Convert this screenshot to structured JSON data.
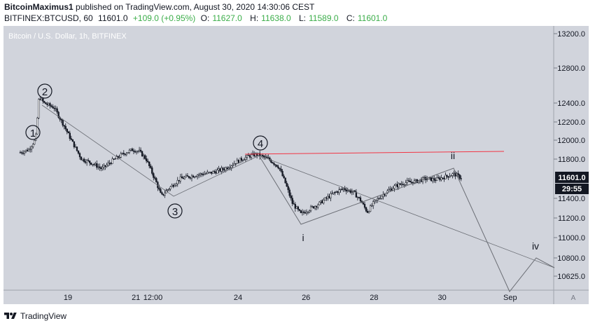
{
  "header": {
    "author": "BitcoinMaximus1",
    "published_text": "published on TradingView.com, August 30, 2020 14:30:06 CEST",
    "symbol": "BITFINEX:BTCUSD, 60",
    "last": "11601.0",
    "change": "+109.0 (+0.95%)",
    "open_label": "O:",
    "open": "11627.0",
    "high_label": "H:",
    "high": "11638.0",
    "low_label": "L:",
    "low": "11589.0",
    "close_label": "C:",
    "close": "11601.0"
  },
  "chart_data": {
    "type": "candlestick",
    "title": "Bitcoin / U.S. Dollar, 1h, BITFINEX",
    "ylim": [
      10500,
      13300
    ],
    "y_ticks": [
      "13200.0",
      "12800.0",
      "12400.0",
      "12200.0",
      "12000.0",
      "11800.0",
      "11400.0",
      "11200.0",
      "11000.0",
      "10800.0",
      "10625.0"
    ],
    "x_ticks": [
      "19",
      "21",
      "12:00",
      "24",
      "26",
      "28",
      "30",
      "Sep"
    ],
    "x_tick_days": [
      19,
      21,
      21.5,
      24,
      26,
      28,
      30,
      32
    ],
    "last_price": "11601.0",
    "countdown": "29:55",
    "approx_path": [
      [
        17.6,
        11870
      ],
      [
        17.85,
        11900
      ],
      [
        18.05,
        12010
      ],
      [
        18.15,
        12470
      ],
      [
        18.3,
        12400
      ],
      [
        18.6,
        12350
      ],
      [
        18.9,
        12150
      ],
      [
        19.1,
        12000
      ],
      [
        19.4,
        11800
      ],
      [
        19.7,
        11760
      ],
      [
        20.0,
        11700
      ],
      [
        20.3,
        11780
      ],
      [
        20.6,
        11850
      ],
      [
        20.9,
        11900
      ],
      [
        21.1,
        11880
      ],
      [
        21.3,
        11800
      ],
      [
        21.6,
        11560
      ],
      [
        21.75,
        11420
      ],
      [
        21.9,
        11480
      ],
      [
        22.3,
        11600
      ],
      [
        22.8,
        11640
      ],
      [
        23.2,
        11660
      ],
      [
        23.6,
        11700
      ],
      [
        24.0,
        11780
      ],
      [
        24.3,
        11830
      ],
      [
        24.55,
        11850
      ],
      [
        24.9,
        11800
      ],
      [
        25.2,
        11720
      ],
      [
        25.4,
        11550
      ],
      [
        25.6,
        11350
      ],
      [
        25.85,
        11240
      ],
      [
        26.1,
        11290
      ],
      [
        26.4,
        11350
      ],
      [
        26.8,
        11450
      ],
      [
        27.1,
        11500
      ],
      [
        27.4,
        11460
      ],
      [
        27.6,
        11380
      ],
      [
        27.8,
        11260
      ],
      [
        28.0,
        11360
      ],
      [
        28.3,
        11450
      ],
      [
        28.6,
        11520
      ],
      [
        28.9,
        11560
      ],
      [
        29.2,
        11570
      ],
      [
        29.5,
        11600
      ],
      [
        29.8,
        11590
      ],
      [
        30.1,
        11620
      ],
      [
        30.35,
        11650
      ],
      [
        30.6,
        11601
      ]
    ],
    "wave_labels": [
      "1",
      "2",
      "3",
      "4",
      "i",
      "ii",
      "iv"
    ],
    "colors": {
      "background": "#d1d4dc",
      "candles": "#131722",
      "resistance": "#f23645",
      "wave_lines": "#555555",
      "price_tag": "#131722"
    }
  },
  "footer": {
    "brand": "TradingView"
  }
}
